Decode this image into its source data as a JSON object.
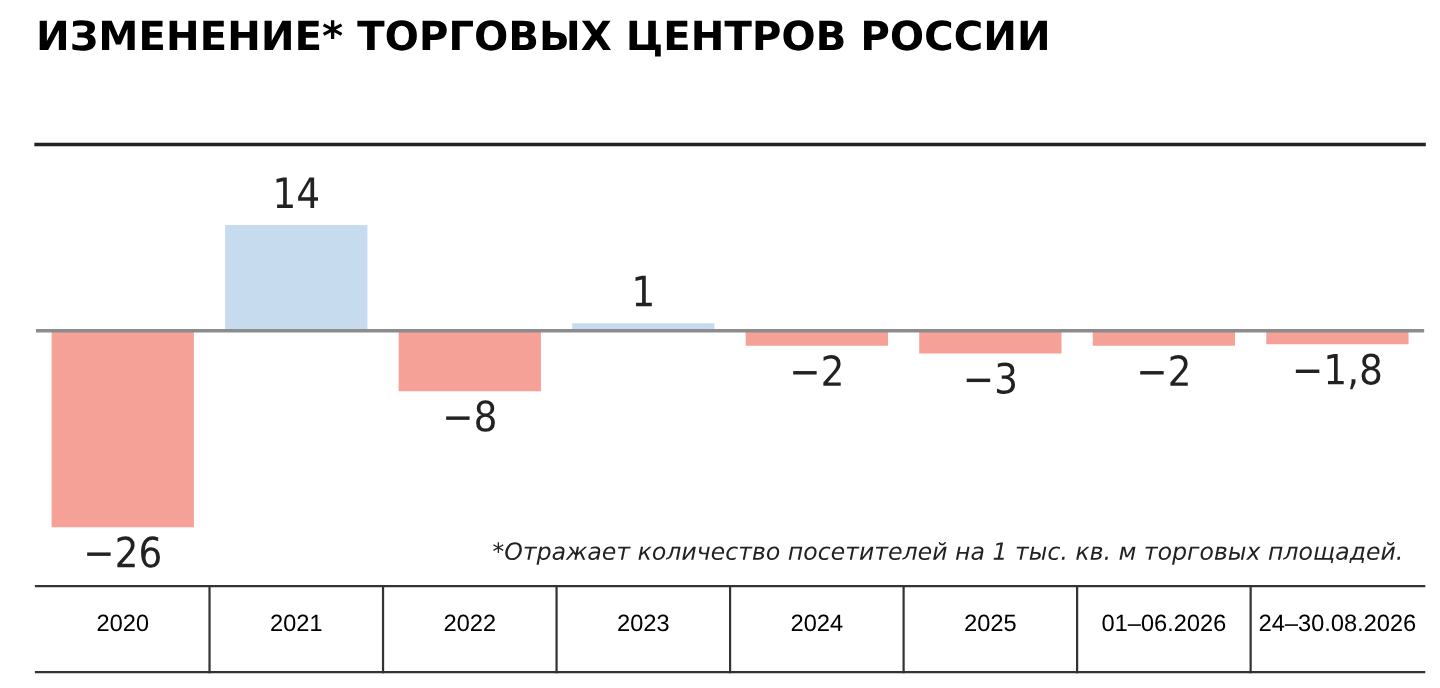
{
  "chart_data": {
    "type": "bar",
    "title": "ИЗМЕНЕНИЕ* ТОРГОВЫХ ЦЕНТРОВ РОССИИ",
    "categories": [
      "2020",
      "2021",
      "2022",
      "2023",
      "2024",
      "2025",
      "01–06.2026",
      "24–30.08.2026"
    ],
    "values": [
      -26,
      14,
      -8,
      1,
      -2,
      -3,
      -2,
      -1.8
    ],
    "colors": [
      "#f5a198",
      "#c6dcee",
      "#f5a198",
      "#c6dcee",
      "#f5a198",
      "#f5a198",
      "#f5a198",
      "#f5a198"
    ],
    "value_labels": [
      "−26",
      "14",
      "−8",
      "1",
      "−2",
      "−3",
      "−2",
      "−1,8"
    ],
    "ref_lines": [
      {
        "axis": "y",
        "value": 0,
        "color": "#8c8c8c"
      }
    ],
    "annotations": [
      "*Отражает количество посетителей на 1 тыс. кв. м торговых площадей."
    ],
    "grid": false,
    "legend": false
  }
}
